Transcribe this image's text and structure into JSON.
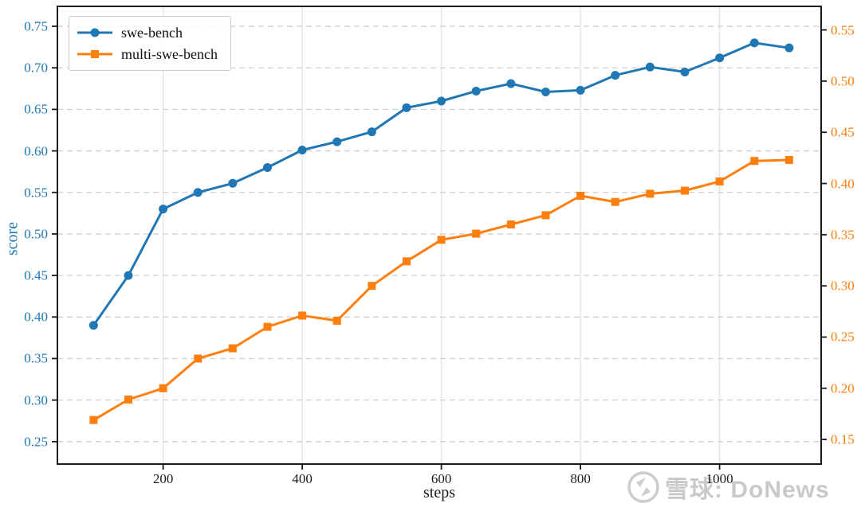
{
  "watermark": {
    "text": "雪球: DoNews",
    "logo": "xueqiu-logo"
  },
  "chart_data": {
    "type": "line",
    "title": "",
    "xlabel": "steps",
    "ylabel": "score",
    "legend_position": "upper left",
    "grid": {
      "horizontal": "dashed",
      "vertical": "solid"
    },
    "x": [
      100,
      150,
      200,
      250,
      300,
      350,
      400,
      450,
      500,
      550,
      600,
      650,
      700,
      750,
      800,
      850,
      900,
      950,
      1000,
      1050,
      1100
    ],
    "series": [
      {
        "name": "swe-bench",
        "axis": "left",
        "color": "#1f77b4",
        "marker": "circle",
        "values": [
          0.39,
          0.45,
          0.53,
          0.55,
          0.561,
          0.58,
          0.601,
          0.611,
          0.623,
          0.652,
          0.66,
          0.672,
          0.681,
          0.671,
          0.673,
          0.691,
          0.701,
          0.695,
          0.712,
          0.73,
          0.724
        ]
      },
      {
        "name": "multi-swe-bench",
        "axis": "right",
        "color": "#ff7f0e",
        "marker": "square",
        "values": [
          0.169,
          0.189,
          0.2,
          0.229,
          0.239,
          0.26,
          0.271,
          0.266,
          0.3,
          0.324,
          0.345,
          0.351,
          0.36,
          0.369,
          0.388,
          0.382,
          0.39,
          0.393,
          0.402,
          0.422,
          0.423
        ]
      }
    ],
    "axes": {
      "x": {
        "label": "steps",
        "range": [
          48,
          1146
        ],
        "ticks": [
          "200",
          "400",
          "600",
          "800",
          "1000"
        ]
      },
      "left": {
        "label": "score",
        "color": "#1f77b4",
        "range": [
          0.223,
          0.774
        ],
        "ticks": [
          "0.25",
          "0.30",
          "0.35",
          "0.40",
          "0.45",
          "0.50",
          "0.55",
          "0.60",
          "0.65",
          "0.70",
          "0.75"
        ]
      },
      "right": {
        "color": "#ff7f0e",
        "range": [
          0.126,
          0.573
        ],
        "ticks": [
          "0.15",
          "0.20",
          "0.25",
          "0.30",
          "0.35",
          "0.40",
          "0.45",
          "0.50",
          "0.55"
        ]
      }
    }
  }
}
